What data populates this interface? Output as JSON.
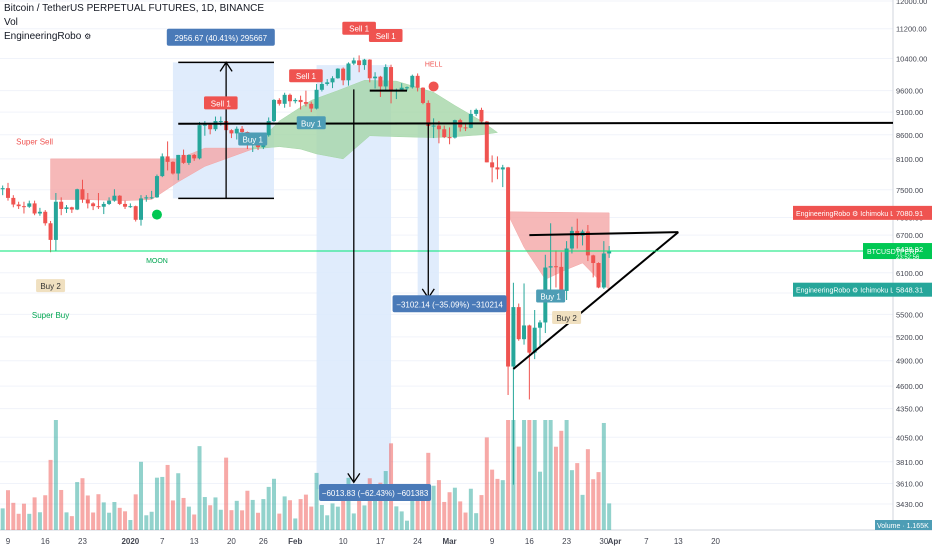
{
  "header": {
    "title": "Bitcoin / TetherUS PERPETUAL FUTURES, 1D, BINANCE",
    "vol_label": "Vol",
    "indicator_label": "EngineeringRobo"
  },
  "colors": {
    "up": "#26a69a",
    "down": "#ef5350",
    "cloud_bull": "#a5d6a7",
    "cloud_bear": "#f4a6a6",
    "measure_box": "#dbe9fb",
    "price_line": "#00e676",
    "buy_box": "#4d9db5",
    "sell_box": "#ef5350",
    "buy2_box": "#f0e0c0",
    "callout": "#4a7ab8"
  },
  "chart_data": {
    "type": "candlestick",
    "symbol": "BTCUSDTPERP",
    "timeframe": "1D",
    "exchange": "BINANCE",
    "y_axis": {
      "scale": "log",
      "ticks": [
        "12000.00",
        "11200.00",
        "10400.00",
        "9600.00",
        "9100.00",
        "8600.00",
        "8100.00",
        "7500.00",
        "7000.00",
        "6700.00",
        "6100.00",
        "5800.00",
        "5500.00",
        "5200.00",
        "4900.00",
        "4600.00",
        "4350.00",
        "4050.00",
        "3810.00",
        "3610.00",
        "3430.00"
      ],
      "tick_values": [
        12000,
        11200,
        10400,
        9600,
        9100,
        8600,
        8100,
        7500,
        7000,
        6700,
        6100,
        5800,
        5500,
        5200,
        4900,
        4600,
        4350,
        4050,
        3810,
        3610,
        3430
      ]
    },
    "x_axis": {
      "ticks": [
        "9",
        "16",
        "23",
        "2020",
        "7",
        "13",
        "20",
        "26",
        "Feb",
        "10",
        "17",
        "24",
        "Mar",
        "9",
        "16",
        "23",
        "30",
        "Apr",
        "7",
        "13",
        "20"
      ]
    },
    "candles": [
      {
        "date": "2019-12-03",
        "o": 7320,
        "h": 7420,
        "l": 7150,
        "c": 7200
      },
      {
        "date": "2019-12-04",
        "o": 7200,
        "h": 7600,
        "l": 7100,
        "c": 7200
      },
      {
        "date": "2019-12-05",
        "o": 7200,
        "h": 7450,
        "l": 7150,
        "c": 7400
      },
      {
        "date": "2019-12-06",
        "o": 7400,
        "h": 7600,
        "l": 7350,
        "c": 7550
      },
      {
        "date": "2019-12-07",
        "o": 7550,
        "h": 7580,
        "l": 7450,
        "c": 7510
      },
      {
        "date": "2019-12-08",
        "o": 7510,
        "h": 7580,
        "l": 7400,
        "c": 7530
      },
      {
        "date": "2019-12-09",
        "o": 7530,
        "h": 7630,
        "l": 7300,
        "c": 7350
      },
      {
        "date": "2019-12-10",
        "o": 7350,
        "h": 7400,
        "l": 7180,
        "c": 7230
      },
      {
        "date": "2019-12-11",
        "o": 7230,
        "h": 7280,
        "l": 7150,
        "c": 7200
      },
      {
        "date": "2019-12-12",
        "o": 7200,
        "h": 7280,
        "l": 7070,
        "c": 7190
      },
      {
        "date": "2019-12-13",
        "o": 7190,
        "h": 7300,
        "l": 7170,
        "c": 7250
      },
      {
        "date": "2019-12-14",
        "o": 7250,
        "h": 7300,
        "l": 7040,
        "c": 7070
      },
      {
        "date": "2019-12-15",
        "o": 7070,
        "h": 7170,
        "l": 7030,
        "c": 7100
      },
      {
        "date": "2019-12-16",
        "o": 7100,
        "h": 7130,
        "l": 6860,
        "c": 6900
      },
      {
        "date": "2019-12-17",
        "o": 6900,
        "h": 6940,
        "l": 6420,
        "c": 6620
      },
      {
        "date": "2019-12-18",
        "o": 6620,
        "h": 7440,
        "l": 6440,
        "c": 7280
      },
      {
        "date": "2019-12-19",
        "o": 7280,
        "h": 7360,
        "l": 7040,
        "c": 7150
      },
      {
        "date": "2019-12-20",
        "o": 7150,
        "h": 7220,
        "l": 7080,
        "c": 7180
      },
      {
        "date": "2019-12-21",
        "o": 7180,
        "h": 7190,
        "l": 7080,
        "c": 7140
      },
      {
        "date": "2019-12-22",
        "o": 7140,
        "h": 7520,
        "l": 7130,
        "c": 7510
      },
      {
        "date": "2019-12-23",
        "o": 7510,
        "h": 7690,
        "l": 7260,
        "c": 7320
      },
      {
        "date": "2019-12-24",
        "o": 7320,
        "h": 7440,
        "l": 7160,
        "c": 7250
      },
      {
        "date": "2019-12-25",
        "o": 7250,
        "h": 7270,
        "l": 7130,
        "c": 7200
      },
      {
        "date": "2019-12-26",
        "o": 7200,
        "h": 7440,
        "l": 7150,
        "c": 7190
      },
      {
        "date": "2019-12-27",
        "o": 7190,
        "h": 7280,
        "l": 7060,
        "c": 7240
      },
      {
        "date": "2019-12-28",
        "o": 7240,
        "h": 7360,
        "l": 7220,
        "c": 7300
      },
      {
        "date": "2019-12-29",
        "o": 7300,
        "h": 7510,
        "l": 7280,
        "c": 7390
      },
      {
        "date": "2019-12-30",
        "o": 7390,
        "h": 7400,
        "l": 7220,
        "c": 7240
      },
      {
        "date": "2019-12-31",
        "o": 7240,
        "h": 7300,
        "l": 7150,
        "c": 7190
      },
      {
        "date": "2020-01-01",
        "o": 7190,
        "h": 7250,
        "l": 7170,
        "c": 7200
      },
      {
        "date": "2020-01-02",
        "o": 7200,
        "h": 7210,
        "l": 6930,
        "c": 6960
      },
      {
        "date": "2020-01-03",
        "o": 6960,
        "h": 7400,
        "l": 6860,
        "c": 7340
      },
      {
        "date": "2020-01-04",
        "o": 7340,
        "h": 7400,
        "l": 7280,
        "c": 7360
      },
      {
        "date": "2020-01-05",
        "o": 7360,
        "h": 7480,
        "l": 7330,
        "c": 7360
      },
      {
        "date": "2020-01-06",
        "o": 7360,
        "h": 7790,
        "l": 7350,
        "c": 7760
      },
      {
        "date": "2020-01-07",
        "o": 7760,
        "h": 8210,
        "l": 7740,
        "c": 8150
      },
      {
        "date": "2020-01-08",
        "o": 8150,
        "h": 8460,
        "l": 7870,
        "c": 8040
      },
      {
        "date": "2020-01-09",
        "o": 8040,
        "h": 8050,
        "l": 7790,
        "c": 7810
      },
      {
        "date": "2020-01-10",
        "o": 7810,
        "h": 8180,
        "l": 7680,
        "c": 8180
      },
      {
        "date": "2020-01-11",
        "o": 8180,
        "h": 8290,
        "l": 8000,
        "c": 8020
      },
      {
        "date": "2020-01-12",
        "o": 8020,
        "h": 8190,
        "l": 7980,
        "c": 8180
      },
      {
        "date": "2020-01-13",
        "o": 8180,
        "h": 8200,
        "l": 8060,
        "c": 8110
      },
      {
        "date": "2020-01-14",
        "o": 8110,
        "h": 8880,
        "l": 8090,
        "c": 8810
      },
      {
        "date": "2020-01-15",
        "o": 8810,
        "h": 8900,
        "l": 8580,
        "c": 8820
      },
      {
        "date": "2020-01-16",
        "o": 8820,
        "h": 8850,
        "l": 8610,
        "c": 8720
      },
      {
        "date": "2020-01-17",
        "o": 8720,
        "h": 9000,
        "l": 8680,
        "c": 8900
      },
      {
        "date": "2020-01-18",
        "o": 8900,
        "h": 9000,
        "l": 8800,
        "c": 8900
      },
      {
        "date": "2020-01-19",
        "o": 8900,
        "h": 9190,
        "l": 8480,
        "c": 8700
      },
      {
        "date": "2020-01-20",
        "o": 8700,
        "h": 8720,
        "l": 8530,
        "c": 8630
      },
      {
        "date": "2020-01-21",
        "o": 8630,
        "h": 8780,
        "l": 8500,
        "c": 8730
      },
      {
        "date": "2020-01-22",
        "o": 8730,
        "h": 8790,
        "l": 8600,
        "c": 8660
      },
      {
        "date": "2020-01-23",
        "o": 8660,
        "h": 8670,
        "l": 8300,
        "c": 8390
      },
      {
        "date": "2020-01-24",
        "o": 8390,
        "h": 8520,
        "l": 8240,
        "c": 8430
      },
      {
        "date": "2020-01-25",
        "o": 8430,
        "h": 8440,
        "l": 8280,
        "c": 8340
      },
      {
        "date": "2020-01-26",
        "o": 8340,
        "h": 8590,
        "l": 8300,
        "c": 8590
      },
      {
        "date": "2020-01-27",
        "o": 8590,
        "h": 8980,
        "l": 8560,
        "c": 8900
      },
      {
        "date": "2020-01-28",
        "o": 8900,
        "h": 9400,
        "l": 8880,
        "c": 9380
      },
      {
        "date": "2020-01-29",
        "o": 9380,
        "h": 9420,
        "l": 9250,
        "c": 9290
      },
      {
        "date": "2020-01-30",
        "o": 9290,
        "h": 9550,
        "l": 9200,
        "c": 9500
      },
      {
        "date": "2020-01-31",
        "o": 9500,
        "h": 9530,
        "l": 9220,
        "c": 9350
      },
      {
        "date": "2020-02-01",
        "o": 9350,
        "h": 9420,
        "l": 9300,
        "c": 9380
      },
      {
        "date": "2020-02-02",
        "o": 9380,
        "h": 9480,
        "l": 9160,
        "c": 9330
      },
      {
        "date": "2020-02-03",
        "o": 9330,
        "h": 9600,
        "l": 9230,
        "c": 9290
      },
      {
        "date": "2020-02-04",
        "o": 9290,
        "h": 9340,
        "l": 9100,
        "c": 9180
      },
      {
        "date": "2020-02-05",
        "o": 9180,
        "h": 9760,
        "l": 9160,
        "c": 9620
      },
      {
        "date": "2020-02-06",
        "o": 9620,
        "h": 9850,
        "l": 9580,
        "c": 9760
      },
      {
        "date": "2020-02-07",
        "o": 9760,
        "h": 9880,
        "l": 9720,
        "c": 9800
      },
      {
        "date": "2020-02-08",
        "o": 9800,
        "h": 9950,
        "l": 9660,
        "c": 9900
      },
      {
        "date": "2020-02-09",
        "o": 9900,
        "h": 10150,
        "l": 9890,
        "c": 10140
      },
      {
        "date": "2020-02-10",
        "o": 10140,
        "h": 10170,
        "l": 9730,
        "c": 9850
      },
      {
        "date": "2020-02-11",
        "o": 9850,
        "h": 10300,
        "l": 9720,
        "c": 10270
      },
      {
        "date": "2020-02-12",
        "o": 10270,
        "h": 10420,
        "l": 10230,
        "c": 10350
      },
      {
        "date": "2020-02-13",
        "o": 10350,
        "h": 10480,
        "l": 10050,
        "c": 10230
      },
      {
        "date": "2020-02-14",
        "o": 10230,
        "h": 10390,
        "l": 10110,
        "c": 10370
      },
      {
        "date": "2020-02-15",
        "o": 10370,
        "h": 10380,
        "l": 9800,
        "c": 9900
      },
      {
        "date": "2020-02-16",
        "o": 9900,
        "h": 10050,
        "l": 9650,
        "c": 9940
      },
      {
        "date": "2020-02-17",
        "o": 9940,
        "h": 9960,
        "l": 9450,
        "c": 9700
      },
      {
        "date": "2020-02-18",
        "o": 9700,
        "h": 10250,
        "l": 9600,
        "c": 10180
      },
      {
        "date": "2020-02-19",
        "o": 10180,
        "h": 10240,
        "l": 9300,
        "c": 9600
      },
      {
        "date": "2020-02-20",
        "o": 9600,
        "h": 9650,
        "l": 9400,
        "c": 9620
      },
      {
        "date": "2020-02-21",
        "o": 9620,
        "h": 9780,
        "l": 9580,
        "c": 9670
      },
      {
        "date": "2020-02-22",
        "o": 9670,
        "h": 9700,
        "l": 9600,
        "c": 9680
      },
      {
        "date": "2020-02-23",
        "o": 9680,
        "h": 9990,
        "l": 9650,
        "c": 9960
      },
      {
        "date": "2020-02-24",
        "o": 9960,
        "h": 10020,
        "l": 9580,
        "c": 9670
      },
      {
        "date": "2020-02-25",
        "o": 9670,
        "h": 9680,
        "l": 9280,
        "c": 9310
      },
      {
        "date": "2020-02-26",
        "o": 9310,
        "h": 9370,
        "l": 8600,
        "c": 8790
      },
      {
        "date": "2020-02-27",
        "o": 8790,
        "h": 8960,
        "l": 8530,
        "c": 8800
      },
      {
        "date": "2020-02-28",
        "o": 8800,
        "h": 8900,
        "l": 8420,
        "c": 8720
      },
      {
        "date": "2020-02-29",
        "o": 8720,
        "h": 8800,
        "l": 8530,
        "c": 8550
      },
      {
        "date": "2020-03-01",
        "o": 8550,
        "h": 8760,
        "l": 8400,
        "c": 8540
      },
      {
        "date": "2020-03-02",
        "o": 8540,
        "h": 8930,
        "l": 8520,
        "c": 8920
      },
      {
        "date": "2020-03-03",
        "o": 8920,
        "h": 8950,
        "l": 8670,
        "c": 8760
      },
      {
        "date": "2020-03-04",
        "o": 8760,
        "h": 8850,
        "l": 8680,
        "c": 8750
      },
      {
        "date": "2020-03-05",
        "o": 8750,
        "h": 9150,
        "l": 8740,
        "c": 9060
      },
      {
        "date": "2020-03-06",
        "o": 9060,
        "h": 9180,
        "l": 9010,
        "c": 9150
      },
      {
        "date": "2020-03-07",
        "o": 9150,
        "h": 9200,
        "l": 8850,
        "c": 8890
      },
      {
        "date": "2020-03-08",
        "o": 8890,
        "h": 8900,
        "l": 8030,
        "c": 8030
      },
      {
        "date": "2020-03-09",
        "o": 8030,
        "h": 8170,
        "l": 7640,
        "c": 7930
      },
      {
        "date": "2020-03-10",
        "o": 7930,
        "h": 8150,
        "l": 7700,
        "c": 7890
      },
      {
        "date": "2020-03-11",
        "o": 7890,
        "h": 7980,
        "l": 7550,
        "c": 7930
      },
      {
        "date": "2020-03-12",
        "o": 7930,
        "h": 7940,
        "l": 4500,
        "c": 4830
      },
      {
        "date": "2020-03-13",
        "o": 4830,
        "h": 5950,
        "l": 3600,
        "c": 5600
      },
      {
        "date": "2020-03-14",
        "o": 5600,
        "h": 5650,
        "l": 5150,
        "c": 5170
      },
      {
        "date": "2020-03-15",
        "o": 5170,
        "h": 5940,
        "l": 5100,
        "c": 5350
      },
      {
        "date": "2020-03-16",
        "o": 5350,
        "h": 5360,
        "l": 4450,
        "c": 5000
      },
      {
        "date": "2020-03-17",
        "o": 5000,
        "h": 5560,
        "l": 4920,
        "c": 5320
      },
      {
        "date": "2020-03-18",
        "o": 5320,
        "h": 5420,
        "l": 5080,
        "c": 5390
      },
      {
        "date": "2020-03-19",
        "o": 5390,
        "h": 6380,
        "l": 5250,
        "c": 6180
      },
      {
        "date": "2020-03-20",
        "o": 6180,
        "h": 6900,
        "l": 5700,
        "c": 6200
      },
      {
        "date": "2020-03-21",
        "o": 6200,
        "h": 6450,
        "l": 5880,
        "c": 6190
      },
      {
        "date": "2020-03-22",
        "o": 6190,
        "h": 6420,
        "l": 5750,
        "c": 5830
      },
      {
        "date": "2020-03-23",
        "o": 5830,
        "h": 6600,
        "l": 5700,
        "c": 6480
      },
      {
        "date": "2020-03-24",
        "o": 6480,
        "h": 6840,
        "l": 6400,
        "c": 6770
      },
      {
        "date": "2020-03-25",
        "o": 6770,
        "h": 6980,
        "l": 6480,
        "c": 6690
      },
      {
        "date": "2020-03-26",
        "o": 6690,
        "h": 6790,
        "l": 6530,
        "c": 6760
      },
      {
        "date": "2020-03-27",
        "o": 6760,
        "h": 6870,
        "l": 6280,
        "c": 6370
      },
      {
        "date": "2020-03-28",
        "o": 6370,
        "h": 6380,
        "l": 6030,
        "c": 6250
      },
      {
        "date": "2020-03-29",
        "o": 6250,
        "h": 6260,
        "l": 5870,
        "c": 5880
      },
      {
        "date": "2020-03-30",
        "o": 5880,
        "h": 6600,
        "l": 5860,
        "c": 6400
      },
      {
        "date": "2020-03-31",
        "o": 6400,
        "h": 6520,
        "l": 6330,
        "c": 6430
      }
    ],
    "price_labels": [
      {
        "text": "EngineeringRobo ⚙ Ichimoku Lead 2",
        "value": "7080.91",
        "price": 7080.91,
        "color": "#ef5350"
      },
      {
        "text": "BTCUSDTPERP",
        "value": "6438.92",
        "sub": "23:52:56",
        "price": 6438.92,
        "color": "#00c853"
      },
      {
        "text": "EngineeringRobo ⚙ Ichimoku Lead 1",
        "value": "5848.31",
        "price": 5848.31,
        "color": "#26a69a"
      }
    ],
    "volume_label": "Volume",
    "volume_value": "1.165K",
    "annotations": [
      {
        "text": "2956.67 (40.41%) 295667",
        "from": 7340,
        "to": 10300
      },
      {
        "text": "−3102.14 (−35.09%) −310214",
        "from": 8840,
        "to": 5730
      },
      {
        "text": "−6013.83 (−62.43%) −601383",
        "from": 9630,
        "to": 3620
      }
    ],
    "signals": [
      {
        "text": "Super Sell",
        "kind": "text-sell"
      },
      {
        "text": "Buy 2",
        "kind": "buy2"
      },
      {
        "text": "Super Buy",
        "kind": "text-buy"
      },
      {
        "text": "MOON",
        "kind": "moon"
      },
      {
        "text": "Sell 1",
        "kind": "sell"
      },
      {
        "text": "Buy 1",
        "kind": "buy"
      },
      {
        "text": "Buy 1",
        "kind": "buy"
      },
      {
        "text": "Sell 1",
        "kind": "sell"
      },
      {
        "text": "Sell 1",
        "kind": "sell"
      },
      {
        "text": "Sell 1",
        "kind": "sell"
      },
      {
        "text": "HELL",
        "kind": "hell"
      },
      {
        "text": "Buy 1",
        "kind": "buy"
      },
      {
        "text": "Buy 2",
        "kind": "buy2"
      }
    ]
  }
}
